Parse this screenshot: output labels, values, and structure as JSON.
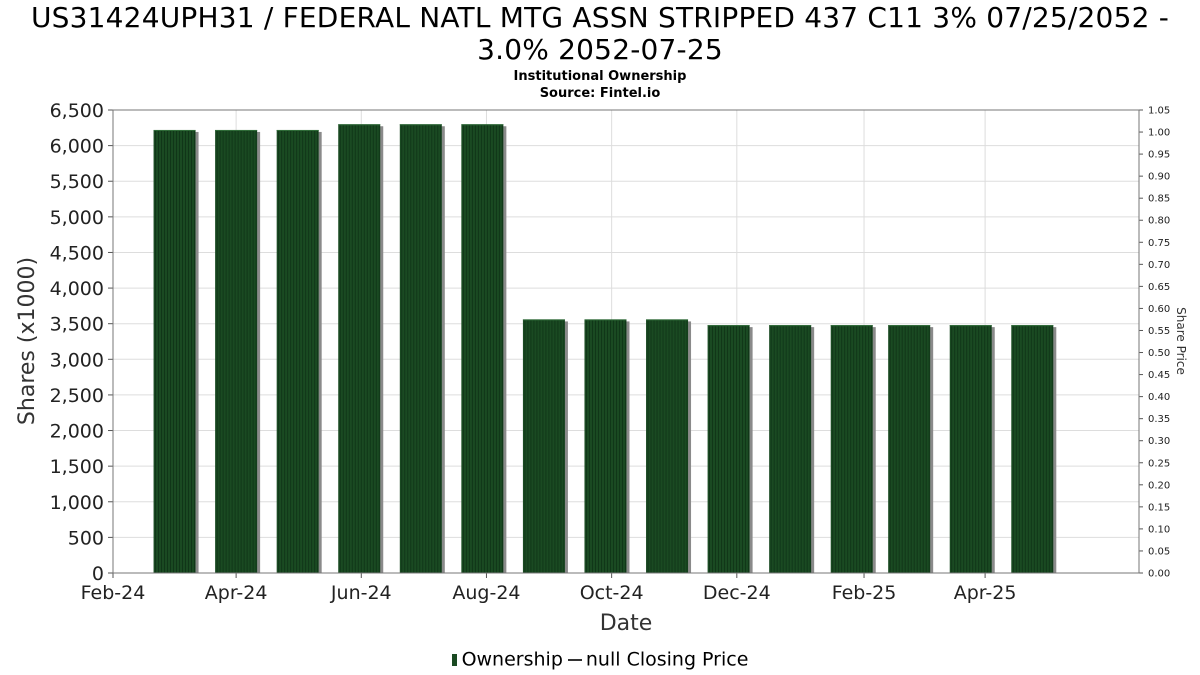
{
  "title": "US31424UPH31 / FEDERAL NATL MTG ASSN STRIPPED 437 C11 3% 07/25/2052 - 3.0% 2052-07-25",
  "subtitle_lines": [
    "Institutional Ownership",
    "Source: Fintel.io"
  ],
  "legend": {
    "ownership": "Ownership",
    "price": "null Closing Price"
  },
  "colors": {
    "bar": "#1a4a22",
    "bar_shadow": "#8a8a8a",
    "grid": "#dddddd"
  },
  "chart_data": {
    "type": "bar",
    "xlabel": "Date",
    "ylabel": "Shares (x1000)",
    "y2label": "Share Price",
    "ylim": [
      0,
      6500
    ],
    "y2lim": [
      0,
      1.05
    ],
    "xlim": [
      "2024-02-01",
      "2025-06-15"
    ],
    "yticks": [
      "0",
      "500",
      "1,000",
      "1,500",
      "2,000",
      "2,500",
      "3,000",
      "3,500",
      "4,000",
      "4,500",
      "5,000",
      "5,500",
      "6,000",
      "6,500"
    ],
    "y2ticks": [
      "0.00",
      "0.05",
      "0.10",
      "0.15",
      "0.20",
      "0.25",
      "0.30",
      "0.35",
      "0.40",
      "0.45",
      "0.50",
      "0.55",
      "0.60",
      "0.65",
      "0.70",
      "0.75",
      "0.80",
      "0.85",
      "0.90",
      "0.95",
      "1.00",
      "1.05"
    ],
    "xticks": [
      {
        "label": "Feb-24",
        "date": "2024-02-01"
      },
      {
        "label": "Apr-24",
        "date": "2024-04-01"
      },
      {
        "label": "Jun-24",
        "date": "2024-06-01"
      },
      {
        "label": "Aug-24",
        "date": "2024-08-01"
      },
      {
        "label": "Oct-24",
        "date": "2024-10-01"
      },
      {
        "label": "Dec-24",
        "date": "2024-12-01"
      },
      {
        "label": "Feb-25",
        "date": "2025-02-01"
      },
      {
        "label": "Apr-25",
        "date": "2025-04-01"
      }
    ],
    "grid": true,
    "legend_position": "bottom",
    "series": [
      {
        "name": "Ownership",
        "points": [
          {
            "date": "2024-03-02",
            "value": 6220
          },
          {
            "date": "2024-04-01",
            "value": 6220
          },
          {
            "date": "2024-05-01",
            "value": 6220
          },
          {
            "date": "2024-05-31",
            "value": 6300
          },
          {
            "date": "2024-06-30",
            "value": 6300
          },
          {
            "date": "2024-07-30",
            "value": 6300
          },
          {
            "date": "2024-08-29",
            "value": 3560
          },
          {
            "date": "2024-09-28",
            "value": 3560
          },
          {
            "date": "2024-10-28",
            "value": 3560
          },
          {
            "date": "2024-11-27",
            "value": 3480
          },
          {
            "date": "2024-12-27",
            "value": 3480
          },
          {
            "date": "2025-01-26",
            "value": 3480
          },
          {
            "date": "2025-02-23",
            "value": 3480
          },
          {
            "date": "2025-03-25",
            "value": 3480
          },
          {
            "date": "2025-04-24",
            "value": 3480
          }
        ]
      }
    ]
  }
}
